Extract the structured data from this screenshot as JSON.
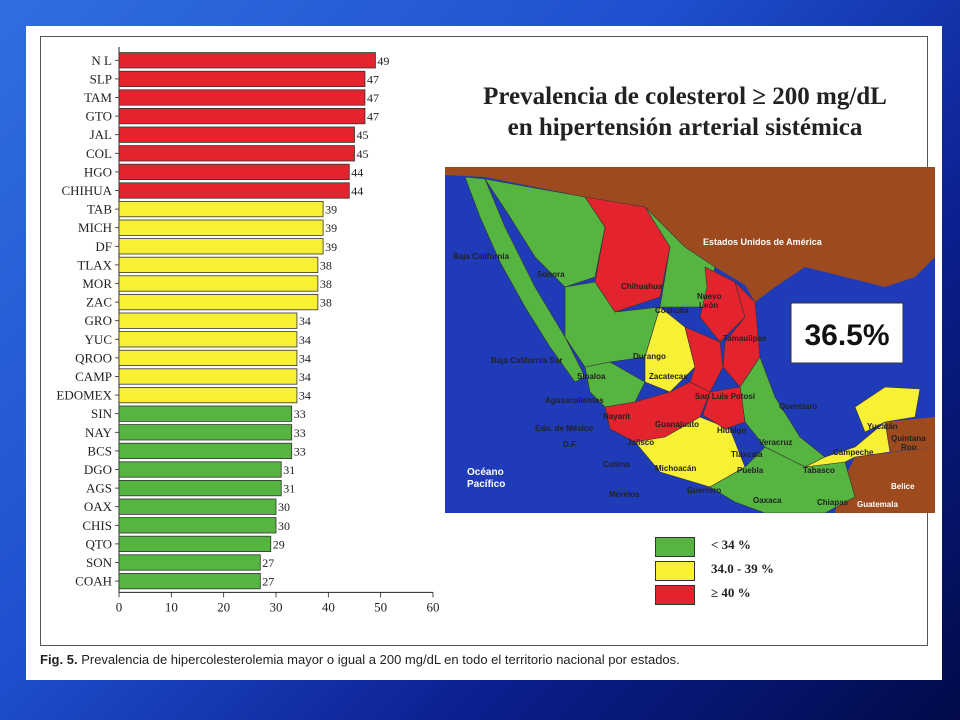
{
  "caption": {
    "prefix": "Fig. 5.",
    "text": "Prevalencia de hipercolesterolemia mayor o igual a 200 mg/dL en todo el territorio nacional por estados."
  },
  "colors": {
    "green": "#55b540",
    "yellow": "#f7f035",
    "red": "#e3232e",
    "brown": "#9c4a1e",
    "ocean": "#1f3bb8"
  },
  "chart_data": [
    {
      "type": "bar",
      "orientation": "horizontal",
      "categories": [
        "N L",
        "SLP",
        "TAM",
        "GTO",
        "JAL",
        "COL",
        "HGO",
        "CHIHUA",
        "TAB",
        "MICH",
        "DF",
        "TLAX",
        "MOR",
        "ZAC",
        "GRO",
        "YUC",
        "QROO",
        "CAMP",
        "EDOMEX",
        "SIN",
        "NAY",
        "BCS",
        "DGO",
        "AGS",
        "OAX",
        "CHIS",
        "QTO",
        "SON",
        "COAH"
      ],
      "values": [
        49,
        47,
        47,
        47,
        45,
        45,
        44,
        44,
        39,
        39,
        39,
        38,
        38,
        38,
        34,
        34,
        34,
        34,
        34,
        33,
        33,
        33,
        31,
        31,
        30,
        30,
        29,
        27,
        27
      ],
      "color_class": [
        "red",
        "red",
        "red",
        "red",
        "red",
        "red",
        "red",
        "red",
        "yellow",
        "yellow",
        "yellow",
        "yellow",
        "yellow",
        "yellow",
        "yellow",
        "yellow",
        "yellow",
        "yellow",
        "yellow",
        "green",
        "green",
        "green",
        "green",
        "green",
        "green",
        "green",
        "green",
        "green",
        "green"
      ],
      "xlim": [
        0,
        60
      ],
      "xticks": [
        "0",
        "10",
        "20",
        "30",
        "40",
        "50",
        "60"
      ],
      "grid": false
    }
  ],
  "map": {
    "title_line1": "Prevalencia de colesterol ≥ 200 mg/dL",
    "title_line2": "en hipertensión arterial sistémica",
    "national_value": "36.5%",
    "labels": {
      "usa": "Estados Unidos de América",
      "baja_california": "Baja California",
      "sonora": "Sonora",
      "chihuahua": "Chihuahua",
      "coahuila": "Coahuila",
      "nuevo_leon": "Nuevo\nLeón",
      "tamaulipas": "Tamaulipas",
      "durango": "Durango",
      "bcs": "Baja California Sur",
      "sinaloa": "Sinaloa",
      "zacatecas": "Zacatecas",
      "slp": "San Luis Potosí",
      "aguascalientes": "Aguascalientes",
      "nayarit": "Nayarit",
      "guanajuato": "Guanajuato",
      "queretaro": "Querétaro",
      "edomex": "Edo. de México",
      "hidalgo": "Hidalgo",
      "df": "D.F.",
      "jalisco": "Jalisco",
      "veracruz": "Veracruz",
      "tlaxcala": "Tlaxcala",
      "colima": "Colima",
      "michoacan": "Michoacán",
      "puebla": "Puebla",
      "morelos": "Morelos",
      "guerrero": "Guerrero",
      "oaxaca": "Oaxaca",
      "chiapas": "Chiapas",
      "tabasco": "Tabasco",
      "campeche": "Campeche",
      "yucatan": "Yucatán",
      "quintana_roo": "Quintana\nRoo",
      "belice": "Belice",
      "guatemala": "Guatemala",
      "pacific": "Océano\nPacífico"
    }
  },
  "legend": [
    {
      "label": "<  34 %",
      "color": "#55b540"
    },
    {
      "label": "34.0 - 39 %",
      "color": "#f7f035"
    },
    {
      "label": "≥  40 %",
      "color": "#e3232e"
    }
  ]
}
